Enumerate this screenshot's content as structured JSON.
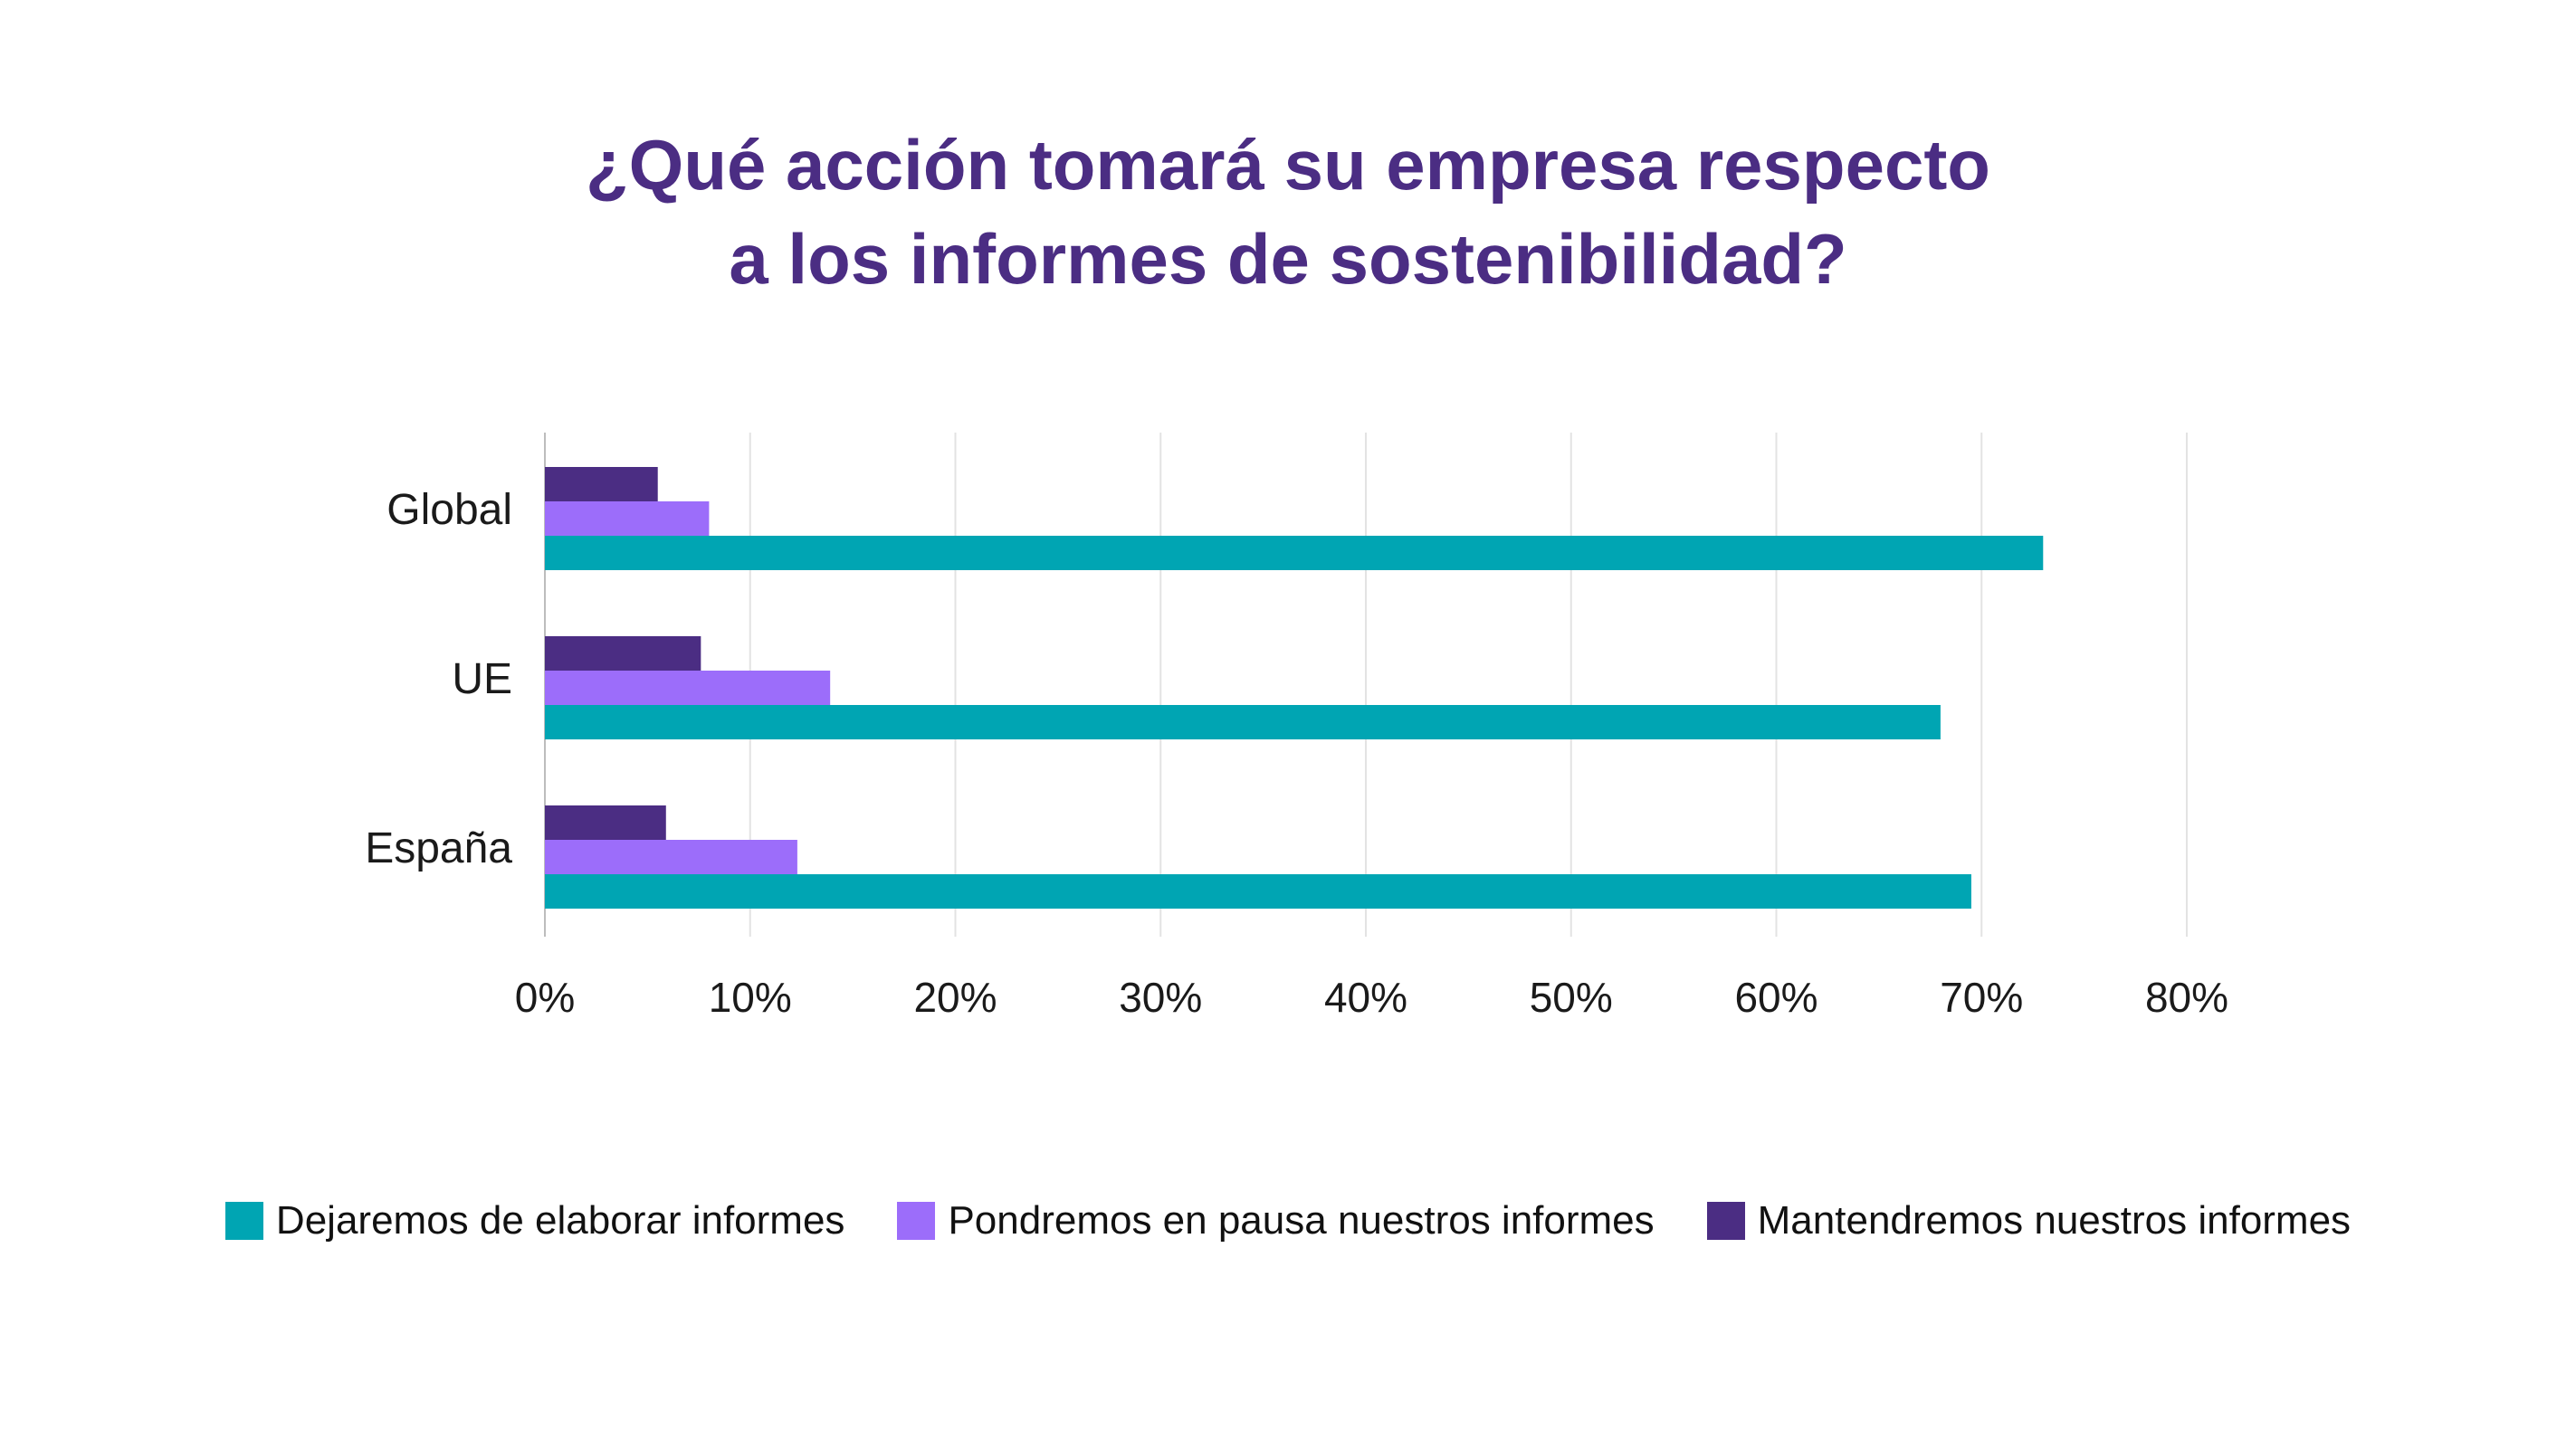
{
  "title": {
    "line1": "¿Qué acción tomará su empresa respecto",
    "line2": "a los informes de sostenibilidad?"
  },
  "chart_data": {
    "type": "bar",
    "orientation": "horizontal",
    "title": "¿Qué acción tomará su empresa respecto a los informes de sostenibilidad?",
    "categories": [
      "Global",
      "UE",
      "España"
    ],
    "series": [
      {
        "name": "Mantendremos nuestros informes",
        "color": "#4b2d83",
        "values": [
          5.5,
          7.6,
          5.9
        ]
      },
      {
        "name": "Pondremos en pausa nuestros informes",
        "color": "#9c6dfa",
        "values": [
          8.0,
          13.9,
          12.3
        ]
      },
      {
        "name": "Dejaremos de elaborar informes",
        "color": "#00a5b3",
        "values": [
          73.0,
          68.0,
          69.5
        ]
      }
    ],
    "xlim": [
      0,
      80
    ],
    "xticks": [
      "0%",
      "10%",
      "20%",
      "30%",
      "40%",
      "50%",
      "60%",
      "70%",
      "80%"
    ],
    "grid": true,
    "legend_position": "bottom"
  },
  "legend": [
    {
      "label": "Dejaremos de elaborar informes",
      "color": "#00a5b3"
    },
    {
      "label": "Pondremos en pausa nuestros informes",
      "color": "#9c6dfa"
    },
    {
      "label": "Mantendremos nuestros informes",
      "color": "#4b2d83"
    }
  ]
}
